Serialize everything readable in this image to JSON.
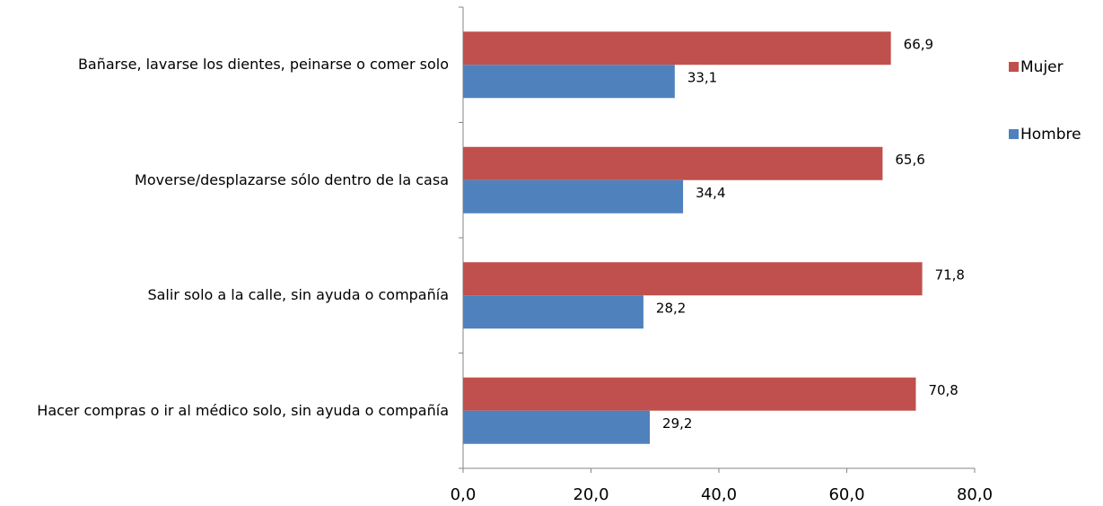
{
  "chart_data": {
    "type": "hbar",
    "categories": [
      "Bañarse, lavarse los dientes, peinarse o comer solo",
      "Moverse/desplazarse sólo dentro de la casa",
      "Salir solo a la calle, sin ayuda o compañía",
      "Hacer compras o ir al médico solo, sin ayuda o compañía"
    ],
    "series": [
      {
        "name": "Mujer",
        "color": "#c0504d",
        "values": [
          66.9,
          65.6,
          71.8,
          70.8
        ],
        "value_labels": [
          "66,9",
          "65,6",
          "71,8",
          "70,8"
        ]
      },
      {
        "name": "Hombre",
        "color": "#4f81bd",
        "values": [
          33.1,
          34.4,
          28.2,
          29.2
        ],
        "value_labels": [
          "33,1",
          "34,4",
          "28,2",
          "29,2"
        ]
      }
    ],
    "xlim": [
      0,
      80
    ],
    "xticks": [
      {
        "value": 0,
        "label": "0,0"
      },
      {
        "value": 20,
        "label": "20,0"
      },
      {
        "value": 40,
        "label": "40,0"
      },
      {
        "value": 60,
        "label": "60,0"
      },
      {
        "value": 80,
        "label": "80,0"
      }
    ],
    "legend": "right"
  }
}
